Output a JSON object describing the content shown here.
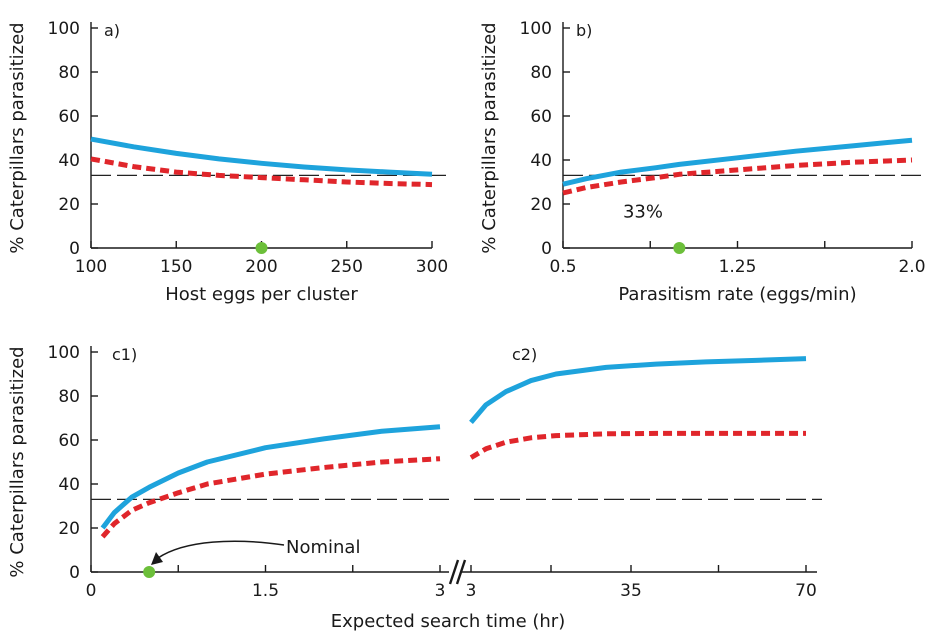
{
  "colors": {
    "blue": "#1ea3dc",
    "red": "#e0262b",
    "green": "#6cbf3a",
    "ref": "#222222"
  },
  "chart_data": [
    {
      "panel": "a)",
      "type": "line",
      "xlabel": "Host eggs per cluster",
      "ylabel": "% Caterpillars parasitized",
      "xlim": [
        100,
        300
      ],
      "ylim": [
        0,
        100
      ],
      "xticks": [
        100,
        150,
        200,
        250,
        300
      ],
      "xtick_labels": [
        "100",
        "150",
        "200",
        "250",
        "300"
      ],
      "yticks": [
        0,
        20,
        40,
        60,
        80,
        100
      ],
      "ytick_labels": [
        "0",
        "20",
        "40",
        "60",
        "80",
        "100"
      ],
      "reference_line": 33,
      "nominal_point": {
        "x": 200,
        "y": 0
      },
      "series": [
        {
          "color": "blue",
          "style": "solid",
          "x": [
            100,
            125,
            150,
            175,
            200,
            225,
            250,
            275,
            300
          ],
          "y": [
            49.5,
            46,
            43,
            40.5,
            38.5,
            36.8,
            35.5,
            34.5,
            33.5
          ]
        },
        {
          "color": "red",
          "style": "dashed",
          "x": [
            100,
            125,
            150,
            175,
            200,
            225,
            250,
            275,
            300
          ],
          "y": [
            40.5,
            37,
            34.5,
            33,
            32,
            31,
            30,
            29.3,
            28.8
          ]
        }
      ]
    },
    {
      "panel": "b)",
      "type": "line",
      "xlabel": "Parasitism rate (eggs/min)",
      "ylabel": "% Caterpillars parasitized",
      "xlim": [
        0.5,
        2.0
      ],
      "ylim": [
        0,
        100
      ],
      "xticks": [
        0.5,
        0.875,
        1.25,
        1.625,
        2.0
      ],
      "xtick_labels": [
        "0.5",
        "",
        "1.25",
        "",
        "2.0"
      ],
      "yticks": [
        0,
        20,
        40,
        60,
        80,
        100
      ],
      "ytick_labels": [
        "0",
        "20",
        "40",
        "60",
        "80",
        "100"
      ],
      "reference_line": 33,
      "reference_label": "33%",
      "nominal_point": {
        "x": 1.0,
        "y": 0
      },
      "series": [
        {
          "color": "blue",
          "style": "solid",
          "x": [
            0.5,
            0.6,
            0.75,
            0.9,
            1.0,
            1.25,
            1.5,
            1.75,
            2.0
          ],
          "y": [
            29,
            31.5,
            34.5,
            36.5,
            38,
            41,
            44,
            46.5,
            49
          ]
        },
        {
          "color": "red",
          "style": "dashed",
          "x": [
            0.5,
            0.6,
            0.75,
            0.9,
            1.0,
            1.25,
            1.5,
            1.75,
            2.0
          ],
          "y": [
            25,
            27.5,
            30,
            32,
            33.5,
            35.5,
            37.5,
            39,
            40
          ]
        }
      ]
    },
    {
      "panel": "c",
      "type": "line",
      "xlabel": "Expected search time (hr)",
      "ylabel": "% Caterpillars parasitized",
      "ylim": [
        0,
        100
      ],
      "yticks": [
        0,
        20,
        40,
        60,
        80,
        100
      ],
      "ytick_labels": [
        "0",
        "20",
        "40",
        "60",
        "80",
        "100"
      ],
      "reference_line": 33,
      "annotation": "Nominal",
      "nominal_point": {
        "x": 0.5,
        "y": 0
      },
      "segments": [
        {
          "label": "c1)",
          "xlim": [
            0,
            3
          ],
          "xticks": [
            0,
            0.75,
            1.5,
            2.25,
            3
          ],
          "xtick_labels": [
            "0",
            "",
            "1.5",
            "",
            "3"
          ],
          "series": [
            {
              "color": "blue",
              "style": "solid",
              "x": [
                0.1,
                0.2,
                0.35,
                0.5,
                0.75,
                1.0,
                1.5,
                2.0,
                2.5,
                3.0
              ],
              "y": [
                20,
                27,
                34,
                38.5,
                45,
                50,
                56.5,
                60.5,
                64,
                66
              ]
            },
            {
              "color": "red",
              "style": "dashed",
              "x": [
                0.1,
                0.2,
                0.35,
                0.5,
                0.75,
                1.0,
                1.5,
                2.0,
                2.5,
                3.0
              ],
              "y": [
                16,
                22,
                28,
                31.5,
                36,
                40,
                44.5,
                47.5,
                50,
                51.5
              ]
            }
          ]
        },
        {
          "label": "c2)",
          "xlim": [
            3,
            70
          ],
          "xticks": [
            3,
            19,
            35,
            52.5,
            70
          ],
          "xtick_labels": [
            "3",
            "",
            "35",
            "",
            "70"
          ],
          "series": [
            {
              "color": "blue",
              "style": "solid",
              "x": [
                3,
                6,
                10,
                15,
                20,
                30,
                40,
                50,
                60,
                70
              ],
              "y": [
                68,
                76,
                82,
                87,
                90,
                93,
                94.5,
                95.5,
                96.2,
                97
              ]
            },
            {
              "color": "red",
              "style": "dashed",
              "x": [
                3,
                6,
                10,
                15,
                20,
                30,
                40,
                50,
                60,
                70
              ],
              "y": [
                52,
                56,
                59,
                61,
                62,
                62.8,
                63,
                63,
                63,
                63
              ]
            }
          ]
        }
      ]
    }
  ]
}
